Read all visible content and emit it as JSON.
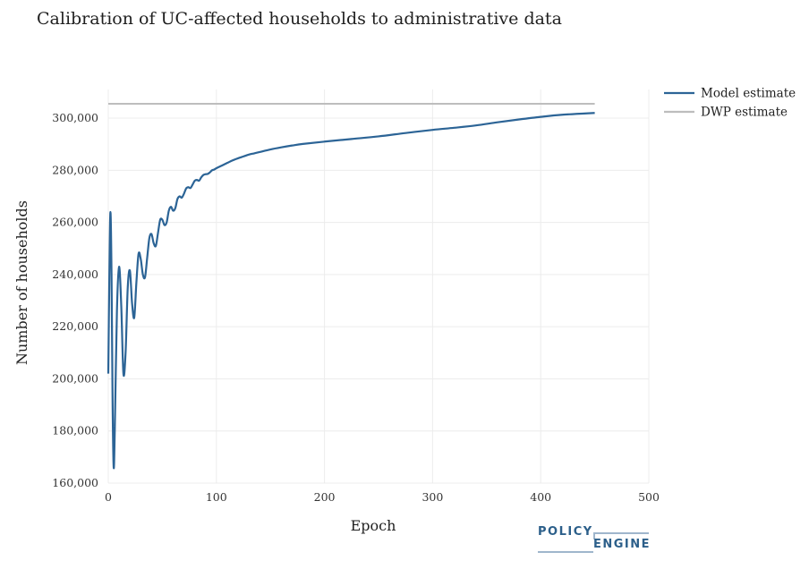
{
  "chart_data": {
    "type": "line",
    "title": "Calibration of UC-affected households to administrative data",
    "xlabel": "Epoch",
    "ylabel": "Number of households",
    "xlim": [
      0,
      500
    ],
    "ylim": [
      160000,
      311000
    ],
    "x_ticks": [
      0,
      100,
      200,
      300,
      400,
      500
    ],
    "y_ticks": [
      160000,
      180000,
      200000,
      220000,
      240000,
      260000,
      280000,
      300000
    ],
    "x_tick_labels": [
      "0",
      "100",
      "200",
      "300",
      "400",
      "500"
    ],
    "y_tick_labels": [
      "160,000",
      "180,000",
      "200,000",
      "220,000",
      "240,000",
      "260,000",
      "280,000",
      "300,000"
    ],
    "legend_position": "top-right",
    "series": [
      {
        "name": "Model estimate",
        "color": "#2c6496",
        "x": [
          0,
          1,
          2,
          3,
          4,
          5,
          6,
          8,
          10,
          12,
          14,
          16,
          18,
          20,
          22,
          24,
          26,
          28,
          30,
          32,
          34,
          36,
          38,
          40,
          42,
          44,
          46,
          48,
          50,
          52,
          54,
          56,
          58,
          60,
          62,
          64,
          66,
          68,
          70,
          72,
          74,
          76,
          78,
          80,
          82,
          84,
          86,
          88,
          90,
          92,
          94,
          96,
          98,
          100,
          105,
          110,
          115,
          120,
          125,
          130,
          135,
          140,
          150,
          160,
          170,
          180,
          200,
          225,
          250,
          275,
          300,
          320,
          340,
          360,
          380,
          400,
          420,
          450
        ],
        "values": [
          202000,
          240000,
          264000,
          240000,
          190000,
          166000,
          180000,
          226000,
          243000,
          228000,
          202000,
          210000,
          235000,
          241500,
          229000,
          223500,
          237000,
          248000,
          246000,
          240000,
          239000,
          246500,
          254000,
          255500,
          252000,
          251000,
          256000,
          261000,
          261000,
          259000,
          260000,
          264500,
          266000,
          264500,
          265500,
          269000,
          270000,
          269500,
          271000,
          273000,
          273500,
          273200,
          274500,
          276000,
          276300,
          276000,
          277300,
          278200,
          278500,
          278600,
          279200,
          280000,
          280300,
          280800,
          281800,
          282800,
          283800,
          284600,
          285300,
          286000,
          286500,
          287000,
          288000,
          288800,
          289500,
          290100,
          291000,
          292000,
          293000,
          294300,
          295500,
          296300,
          297200,
          298400,
          299500,
          300500,
          301300,
          302000
        ]
      },
      {
        "name": "DWP estimate",
        "color": "#bdbdbd",
        "x": [
          0,
          450
        ],
        "values": [
          305500,
          305500
        ]
      }
    ]
  },
  "logo": {
    "top": "POLICY",
    "bottom": "ENGINE"
  }
}
